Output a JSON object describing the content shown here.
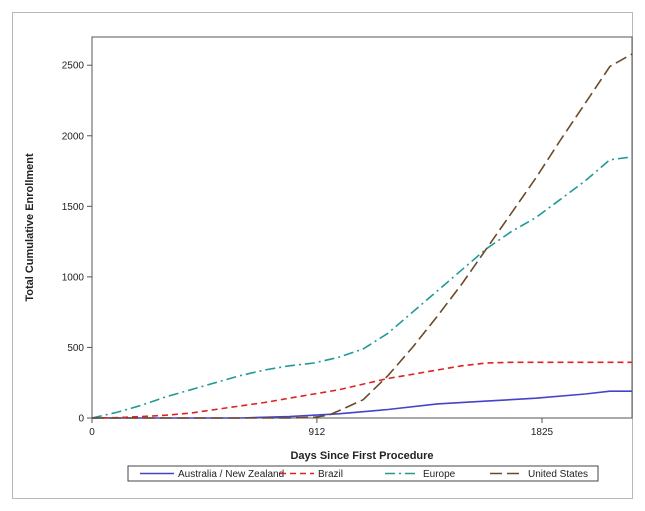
{
  "chart_data": {
    "type": "line",
    "title": "",
    "xlabel": "Days Since First Procedure",
    "ylabel": "Total Cumulative Enrollment",
    "xlim": [
      0,
      2190
    ],
    "ylim": [
      0,
      2700
    ],
    "xticks": [
      0,
      912,
      1825
    ],
    "xtick_labels": [
      "0",
      "912",
      "1825"
    ],
    "yticks": [
      0,
      500,
      1000,
      1500,
      2000,
      2500
    ],
    "ytick_labels": [
      "0",
      "500",
      "1000",
      "1500",
      "2000",
      "2500"
    ],
    "grid": false,
    "legend_position": "bottom",
    "series": [
      {
        "name": "Australia / New Zealand",
        "color": "#4444c8",
        "dash": "solid",
        "x": [
          0,
          200,
          400,
          600,
          800,
          1000,
          1200,
          1400,
          1600,
          1800,
          2000,
          2100,
          2190
        ],
        "y": [
          0,
          0,
          0,
          0,
          10,
          30,
          60,
          100,
          120,
          140,
          170,
          190,
          190
        ]
      },
      {
        "name": "Brazil",
        "color": "#dd2222",
        "dash": "dashed",
        "x": [
          0,
          100,
          200,
          300,
          400,
          500,
          600,
          700,
          800,
          900,
          1000,
          1100,
          1200,
          1300,
          1400,
          1500,
          1600,
          1700,
          1800,
          1900,
          2000,
          2100,
          2190
        ],
        "y": [
          0,
          3,
          10,
          20,
          35,
          60,
          85,
          110,
          140,
          170,
          200,
          240,
          280,
          310,
          340,
          370,
          390,
          395,
          395,
          395,
          395,
          395,
          395
        ]
      },
      {
        "name": "Europe",
        "color": "#229999",
        "dash": "dashdot",
        "x": [
          0,
          100,
          200,
          300,
          400,
          500,
          600,
          700,
          800,
          900,
          1000,
          1100,
          1200,
          1300,
          1400,
          1500,
          1600,
          1700,
          1800,
          1900,
          2000,
          2100,
          2190
        ],
        "y": [
          0,
          40,
          90,
          150,
          200,
          250,
          300,
          340,
          370,
          390,
          430,
          490,
          600,
          750,
          900,
          1050,
          1200,
          1320,
          1420,
          1550,
          1680,
          1830,
          1850
        ]
      },
      {
        "name": "United States",
        "color": "#6b4a2a",
        "dash": "longdash",
        "x": [
          0,
          200,
          400,
          600,
          800,
          900,
          960,
          1000,
          1100,
          1200,
          1300,
          1400,
          1500,
          1600,
          1700,
          1800,
          1900,
          2000,
          2100,
          2190
        ],
        "y": [
          0,
          0,
          0,
          0,
          0,
          5,
          20,
          50,
          130,
          300,
          500,
          720,
          950,
          1200,
          1450,
          1700,
          1970,
          2230,
          2490,
          2580
        ]
      }
    ]
  }
}
